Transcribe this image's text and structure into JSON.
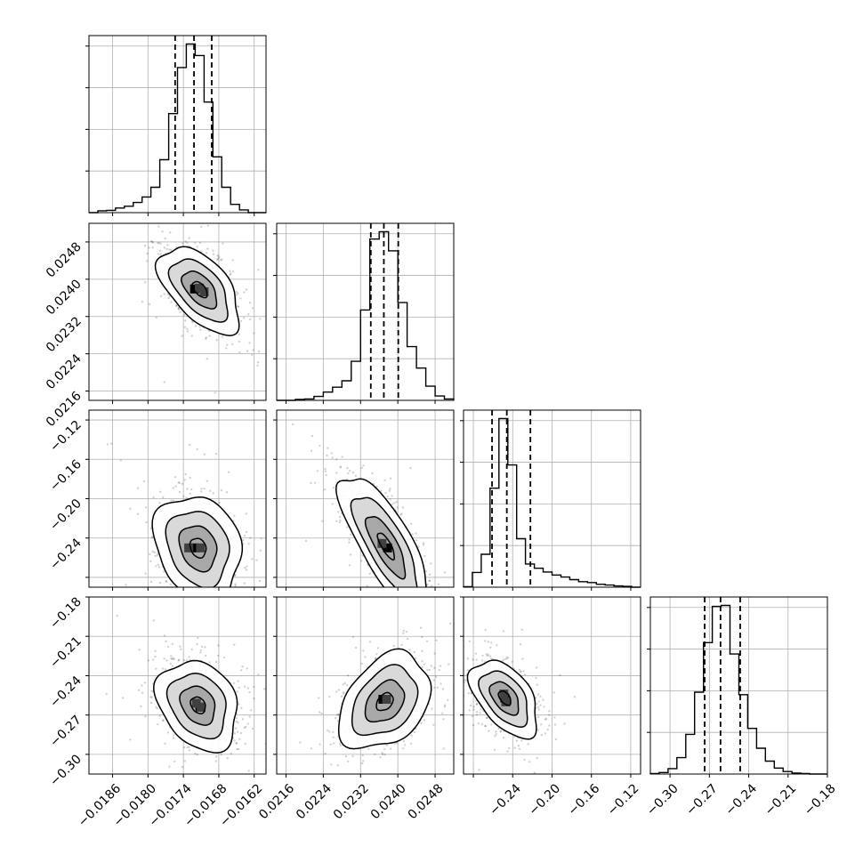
{
  "chart_data": {
    "type": "corner",
    "parameters": 4,
    "grid": true,
    "panels_1d": [
      {
        "param": 1,
        "xlim": [
          -0.019,
          -0.016
        ],
        "quantiles": [
          -0.01754,
          -0.01722,
          -0.01692
        ],
        "bin_edges": [
          -0.019,
          -0.01885,
          -0.0187,
          -0.01855,
          -0.0184,
          -0.01825,
          -0.0181,
          -0.01795,
          -0.0178,
          -0.01765,
          -0.0175,
          -0.01735,
          -0.0172,
          -0.01705,
          -0.0169,
          -0.01675,
          -0.0166,
          -0.01645,
          -0.0163,
          -0.01615,
          -0.016
        ],
        "counts": [
          0,
          4,
          5,
          10,
          14,
          22,
          34,
          55,
          115,
          215,
          315,
          366,
          341,
          240,
          121,
          55,
          18,
          6,
          0,
          0
        ]
      },
      {
        "param": 2,
        "xlim": [
          0.0214,
          0.0252
        ],
        "quantiles": [
          0.02342,
          0.0237,
          0.02401
        ],
        "bin_edges": [
          0.0214,
          0.0216,
          0.0218,
          0.022,
          0.0222,
          0.0224,
          0.0226,
          0.0228,
          0.023,
          0.0232,
          0.0234,
          0.0236,
          0.0238,
          0.024,
          0.0242,
          0.0244,
          0.0246,
          0.0248,
          0.025,
          0.0252
        ],
        "counts": [
          0,
          0,
          2,
          3,
          8,
          17,
          27,
          40,
          80,
          185,
          330,
          345,
          306,
          200,
          110,
          66,
          29,
          9,
          3
        ]
      },
      {
        "param": 3,
        "xlim": [
          -0.29,
          -0.11
        ],
        "quantiles": [
          -0.261,
          -0.246,
          -0.222
        ],
        "bin_edges": [
          -0.29,
          -0.281,
          -0.272,
          -0.263,
          -0.254,
          -0.245,
          -0.236,
          -0.227,
          -0.218,
          -0.209,
          -0.2,
          -0.191,
          -0.182,
          -0.173,
          -0.164,
          -0.155,
          -0.146,
          -0.137,
          -0.128,
          -0.119,
          -0.11
        ],
        "counts": [
          1,
          35,
          78,
          235,
          400,
          290,
          115,
          55,
          45,
          36,
          29,
          24,
          18,
          13,
          11,
          7,
          5,
          3,
          2,
          0
        ]
      },
      {
        "param": 4,
        "xlim": [
          -0.315,
          -0.18
        ],
        "quantiles": [
          -0.2736,
          -0.2615,
          -0.2465
        ],
        "bin_edges": [
          -0.315,
          -0.3083,
          -0.3015,
          -0.2948,
          -0.288,
          -0.2813,
          -0.2745,
          -0.2678,
          -0.261,
          -0.2543,
          -0.2475,
          -0.2408,
          -0.234,
          -0.2273,
          -0.2205,
          -0.2138,
          -0.207,
          -0.2003,
          -0.1935,
          -0.1868,
          -0.18
        ],
        "counts": [
          1,
          3,
          11,
          33,
          80,
          165,
          265,
          338,
          340,
          242,
          160,
          92,
          52,
          26,
          12,
          5,
          2,
          1,
          0,
          0
        ]
      }
    ],
    "panels_2d": [
      {
        "row": 2,
        "col": 1,
        "center": [
          -0.01712,
          0.02378
        ],
        "spread": [
          0.00028,
          0.00038
        ],
        "rho": -0.55,
        "hi_bins": [
          [
            -0.01721,
            0.02379
          ],
          [
            -0.01705,
            0.02373
          ],
          [
            -0.01713,
            0.02381
          ]
        ]
      },
      {
        "row": 3,
        "col": 1,
        "center": [
          -0.01715,
          -0.25
        ],
        "spread": [
          0.0003,
          0.022
        ],
        "rho": -0.2,
        "hi_bins": [
          [
            -0.01721,
            -0.25
          ],
          [
            -0.01731,
            -0.25
          ],
          [
            -0.01711,
            -0.25
          ]
        ]
      },
      {
        "row": 3,
        "col": 2,
        "center": [
          0.02375,
          -0.248
        ],
        "spread": [
          0.0004,
          0.03
        ],
        "rho": -0.78,
        "hi_bins": [
          [
            0.02378,
            -0.25
          ],
          [
            0.02366,
            -0.2455
          ]
        ]
      },
      {
        "row": 4,
        "col": 1,
        "center": [
          -0.01715,
          -0.2625
        ],
        "spread": [
          0.00028,
          0.014
        ],
        "rho": -0.25,
        "hi_bins": [
          [
            -0.01712,
            -0.264
          ],
          [
            -0.01718,
            -0.261
          ],
          [
            -0.0171,
            -0.264
          ]
        ]
      },
      {
        "row": 4,
        "col": 2,
        "center": [
          0.02372,
          -0.26
        ],
        "spread": [
          0.0004,
          0.015
        ],
        "rho": 0.35,
        "hi_bins": [
          [
            0.02368,
            -0.258
          ],
          [
            0.02376,
            -0.258
          ]
        ]
      },
      {
        "row": 4,
        "col": 3,
        "center": [
          -0.248,
          -0.257
        ],
        "spread": [
          0.014,
          0.012
        ],
        "rho": -0.5,
        "hi_bins": [
          [
            -0.248,
            -0.257
          ],
          [
            -0.249,
            -0.254
          ],
          [
            -0.247,
            -0.26
          ]
        ]
      }
    ],
    "axes": [
      {
        "param": 1,
        "range": [
          -0.019,
          -0.016
        ],
        "ticks": [
          -0.0186,
          -0.018,
          -0.0174,
          -0.0168,
          -0.0162
        ],
        "tick_labels": [
          "−0.0186",
          "−0.0180",
          "−0.0174",
          "−0.0168",
          "−0.0162"
        ]
      },
      {
        "param": 2,
        "range": [
          0.0214,
          0.0252
        ],
        "ticks": [
          0.0216,
          0.0224,
          0.0232,
          0.024,
          0.0248
        ],
        "tick_labels": [
          "0.0216",
          "0.0224",
          "0.0232",
          "0.0240",
          "0.0248"
        ]
      },
      {
        "param": 3,
        "range": [
          -0.29,
          -0.11
        ],
        "ticks": [
          -0.28,
          -0.24,
          -0.2,
          -0.16,
          -0.12
        ],
        "tick_labels": [
          "",
          "−0.24",
          "−0.20",
          "−0.16",
          "−0.12"
        ],
        "y_tick_labels": [
          "",
          "−0.24",
          "−0.20",
          "−0.16",
          "−0.12"
        ]
      },
      {
        "param": 4,
        "range": [
          -0.315,
          -0.18
        ],
        "ticks": [
          -0.3,
          -0.27,
          -0.24,
          -0.21,
          -0.18
        ],
        "tick_labels": [
          "−0.30",
          "−0.27",
          "−0.24",
          "−0.21",
          "−0.18"
        ]
      }
    ]
  }
}
